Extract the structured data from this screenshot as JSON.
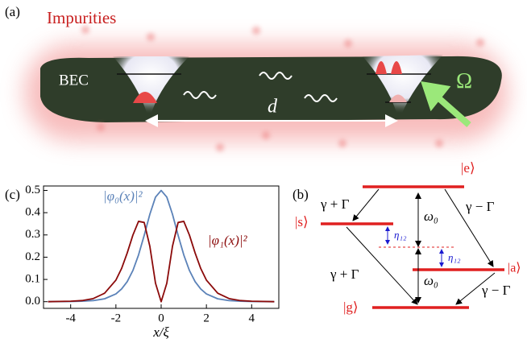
{
  "panel_a": {
    "label": "(a)",
    "impurities": "Impurities",
    "bec": "BEC",
    "distance": "d",
    "drive": "Ω"
  },
  "panel_b": {
    "label": "(b)",
    "level_e": "|e⟩",
    "level_s": "|s⟩",
    "level_a": "|a⟩",
    "level_g": "|g⟩",
    "rate_es": "γ + Γ",
    "rate_ea": "γ − Γ",
    "rate_sg": "γ + Γ",
    "rate_ag": "γ − Γ",
    "omega_upper": "ω₀",
    "omega_lower": "ω₀",
    "eta_s": "η₁₂",
    "eta_a": "η₁₂"
  },
  "chart_data": {
    "type": "line",
    "panel_label": "(c)",
    "xlabel": "x/ξ",
    "x": [
      -5,
      -4,
      -3.5,
      -3,
      -2.5,
      -2,
      -1.75,
      -1.5,
      -1.25,
      -1,
      -0.75,
      -0.5,
      -0.25,
      0,
      0.25,
      0.5,
      0.75,
      1,
      1.25,
      1.5,
      1.75,
      2,
      2.5,
      3,
      3.5,
      4,
      5
    ],
    "series": [
      {
        "name": "|φ₀(x)|²",
        "color": "#5b82b8",
        "values": [
          0,
          0.001,
          0.002,
          0.005,
          0.013,
          0.035,
          0.057,
          0.09,
          0.14,
          0.21,
          0.298,
          0.393,
          0.47,
          0.5,
          0.47,
          0.393,
          0.298,
          0.21,
          0.14,
          0.09,
          0.057,
          0.035,
          0.013,
          0.005,
          0.002,
          0.001,
          0
        ]
      },
      {
        "name": "|φ₁(x)|²",
        "color": "#8b0a0a",
        "values": [
          0,
          0.002,
          0.005,
          0.014,
          0.038,
          0.097,
          0.149,
          0.219,
          0.299,
          0.361,
          0.356,
          0.249,
          0.083,
          0,
          0.083,
          0.249,
          0.356,
          0.361,
          0.299,
          0.219,
          0.149,
          0.097,
          0.038,
          0.014,
          0.005,
          0.002,
          0
        ]
      }
    ],
    "xlim": [
      -5.2,
      5.2
    ],
    "ylim": [
      -0.03,
      0.52
    ],
    "xticks": [
      -4,
      -2,
      0,
      2,
      4
    ],
    "yticks": [
      {
        "value": 0,
        "label": "0.0"
      },
      0.1,
      0.2,
      0.3,
      0.4,
      0.5
    ]
  }
}
